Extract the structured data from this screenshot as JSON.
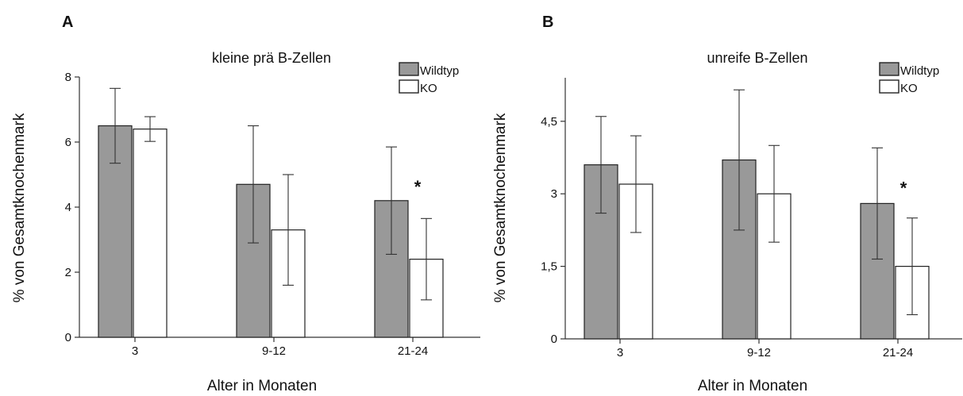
{
  "colors": {
    "wildtyp": "#999999",
    "ko": "#ffffff"
  },
  "chart_data": [
    {
      "type": "bar",
      "panel": "A",
      "title": "kleine prä B-Zellen",
      "xlabel": "Alter in Monaten",
      "ylabel": "% von Gesamtknochenmark",
      "ylim": [
        0,
        8
      ],
      "yticks": [
        0,
        2,
        4,
        6,
        8
      ],
      "ytick_labels": [
        "0",
        "2",
        "4",
        "6",
        "8"
      ],
      "categories": [
        "3",
        "9-12",
        "21-24"
      ],
      "legend_position": "top-right",
      "series": [
        {
          "name": "Wildtyp",
          "values": [
            6.5,
            4.7,
            4.2
          ],
          "error": [
            1.15,
            1.8,
            1.65
          ]
        },
        {
          "name": "KO",
          "values": [
            6.4,
            3.3,
            2.4
          ],
          "error": [
            0.38,
            1.7,
            1.25
          ]
        }
      ],
      "annotations": [
        {
          "text": "*",
          "category": "21-24"
        }
      ]
    },
    {
      "type": "bar",
      "panel": "B",
      "title": "unreife B-Zellen",
      "xlabel": "Alter in Monaten",
      "ylabel": "% von Gesamtknochenmark",
      "ylim": [
        0,
        5.4
      ],
      "yticks": [
        0,
        1.5,
        3,
        4.5
      ],
      "ytick_labels": [
        "0",
        "1,5",
        "3",
        "4,5"
      ],
      "categories": [
        "3",
        "9-12",
        "21-24"
      ],
      "legend_position": "top-right",
      "series": [
        {
          "name": "Wildtyp",
          "values": [
            3.6,
            3.7,
            2.8
          ],
          "error": [
            1.0,
            1.45,
            1.15
          ]
        },
        {
          "name": "KO",
          "values": [
            3.2,
            3.0,
            1.5
          ],
          "error": [
            1.0,
            1.0,
            1.0
          ]
        }
      ],
      "annotations": [
        {
          "text": "*",
          "category": "21-24"
        }
      ]
    }
  ]
}
